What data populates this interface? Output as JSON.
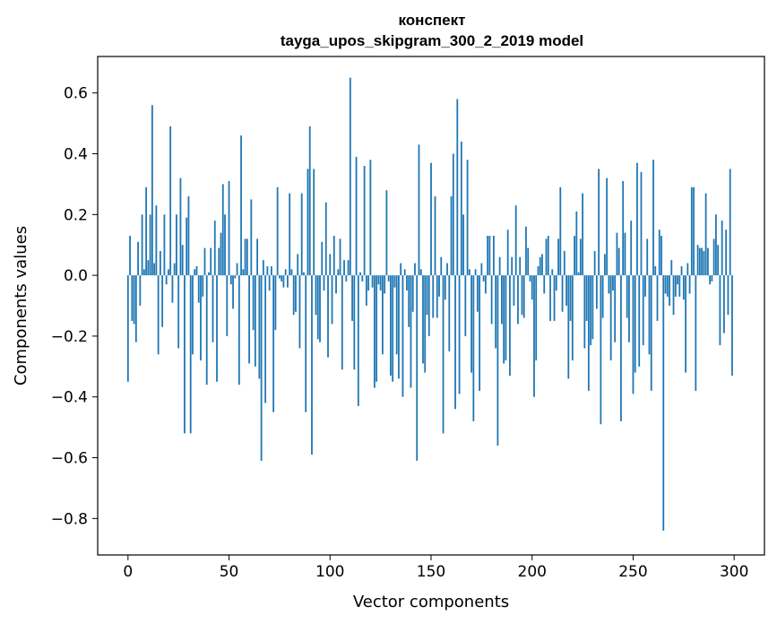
{
  "chart_data": {
    "type": "bar",
    "title_line1": "конспект",
    "title_line2": "tayga_upos_skipgram_300_2_2019 model",
    "xlabel": "Vector components",
    "ylabel": "Components values",
    "xlim": [
      -15,
      315
    ],
    "ylim": [
      -0.92,
      0.72
    ],
    "xticks": [
      0,
      50,
      100,
      150,
      200,
      250,
      300
    ],
    "xtick_labels": [
      "0",
      "50",
      "100",
      "150",
      "200",
      "250",
      "300"
    ],
    "yticks": [
      0.6,
      0.4,
      0.2,
      0.0,
      -0.2,
      -0.4,
      -0.6,
      -0.8
    ],
    "ytick_labels": [
      "0.6",
      "0.4",
      "0.2",
      "0.0",
      "−0.2",
      "−0.4",
      "−0.6",
      "−0.8"
    ],
    "bar_color": "#1f77b4",
    "grid": false,
    "values": [
      -0.35,
      0.13,
      -0.15,
      -0.16,
      -0.22,
      0.11,
      -0.1,
      0.2,
      0.02,
      0.29,
      0.05,
      0.2,
      0.56,
      0.04,
      0.23,
      -0.26,
      0.08,
      -0.17,
      0.2,
      -0.03,
      0.02,
      0.49,
      -0.09,
      0.04,
      0.2,
      -0.24,
      0.32,
      0.1,
      -0.52,
      0.19,
      0.26,
      -0.52,
      -0.26,
      0.02,
      0.03,
      -0.09,
      -0.28,
      -0.07,
      0.09,
      -0.36,
      0.01,
      0.09,
      -0.22,
      0.18,
      -0.35,
      0.09,
      0.14,
      0.3,
      0.2,
      -0.2,
      0.31,
      -0.03,
      -0.11,
      -0.01,
      0.04,
      -0.36,
      0.46,
      0.02,
      0.12,
      0.12,
      -0.29,
      0.25,
      -0.18,
      -0.3,
      0.12,
      -0.34,
      -0.61,
      0.05,
      -0.42,
      0.03,
      -0.05,
      0.03,
      -0.45,
      -0.18,
      0.29,
      -0.01,
      -0.02,
      -0.04,
      0.02,
      -0.04,
      0.27,
      0.02,
      -0.13,
      -0.12,
      0.07,
      -0.24,
      0.27,
      0.01,
      -0.45,
      0.35,
      0.49,
      -0.59,
      0.35,
      -0.13,
      -0.21,
      -0.22,
      0.11,
      -0.05,
      0.24,
      -0.27,
      0.07,
      -0.16,
      0.13,
      -0.06,
      0.02,
      0.12,
      -0.31,
      0.05,
      -0.02,
      0.05,
      0.65,
      -0.15,
      -0.31,
      0.39,
      -0.43,
      0.01,
      -0.02,
      0.36,
      -0.1,
      -0.05,
      0.38,
      -0.04,
      -0.37,
      -0.35,
      -0.03,
      -0.05,
      -0.26,
      -0.06,
      0.28,
      -0.02,
      -0.33,
      -0.35,
      -0.04,
      -0.26,
      -0.34,
      0.04,
      -0.4,
      0.02,
      -0.05,
      -0.17,
      -0.37,
      -0.12,
      0.04,
      -0.61,
      0.43,
      0.02,
      -0.29,
      -0.32,
      -0.13,
      -0.2,
      0.37,
      -0.14,
      0.26,
      -0.14,
      -0.07,
      0.06,
      -0.52,
      -0.08,
      0.04,
      -0.25,
      0.26,
      0.4,
      -0.44,
      0.58,
      -0.39,
      0.44,
      0.2,
      -0.2,
      0.38,
      0.02,
      -0.32,
      -0.48,
      0.02,
      -0.12,
      -0.38,
      0.04,
      -0.02,
      -0.06,
      0.13,
      0.13,
      -0.16,
      0.13,
      -0.24,
      -0.56,
      0.06,
      -0.16,
      -0.29,
      -0.28,
      0.15,
      -0.33,
      0.06,
      -0.1,
      0.23,
      -0.16,
      0.06,
      -0.13,
      -0.14,
      0.16,
      0.09,
      -0.02,
      -0.08,
      -0.4,
      -0.28,
      0.03,
      0.06,
      0.07,
      -0.06,
      0.12,
      0.13,
      -0.15,
      0.02,
      -0.15,
      -0.05,
      0.12,
      0.29,
      -0.12,
      0.08,
      -0.1,
      -0.34,
      -0.15,
      -0.28,
      0.13,
      0.21,
      0.01,
      0.12,
      0.27,
      -0.24,
      -0.15,
      -0.38,
      -0.23,
      -0.21,
      0.08,
      -0.11,
      0.35,
      -0.49,
      -0.14,
      0.07,
      0.32,
      -0.06,
      -0.28,
      -0.05,
      -0.22,
      0.14,
      0.09,
      -0.48,
      0.31,
      0.14,
      -0.14,
      -0.22,
      0.18,
      -0.39,
      -0.32,
      0.37,
      -0.3,
      0.34,
      -0.23,
      -0.07,
      0.12,
      -0.26,
      -0.38,
      0.38,
      0.03,
      -0.15,
      0.15,
      0.13,
      -0.84,
      -0.06,
      -0.07,
      -0.1,
      0.05,
      -0.13,
      -0.07,
      -0.03,
      -0.07,
      0.03,
      -0.08,
      -0.32,
      0.04,
      -0.06,
      0.29,
      0.29,
      -0.38,
      0.1,
      0.09,
      0.09,
      0.08,
      0.27,
      0.09,
      -0.03,
      -0.02,
      0.12,
      0.2,
      0.1,
      -0.23,
      0.18,
      -0.19,
      0.15,
      -0.13,
      0.35,
      -0.33
    ]
  }
}
